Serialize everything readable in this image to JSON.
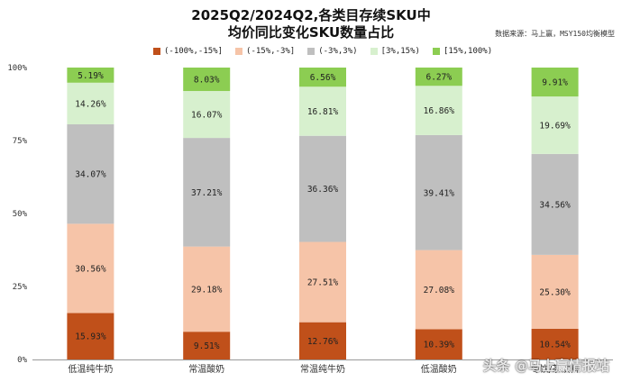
{
  "chart_data": {
    "type": "bar",
    "stacked": true,
    "title": "2025Q2/2024Q2,各类目存续SKU中",
    "subtitle": "均价同比变化SKU数量占比",
    "source": "数据来源：马上赢，MSY150均衡模型",
    "categories": [
      "低温纯牛奶",
      "常温酸奶",
      "常温纯牛奶",
      "低温酸奶",
      "冬饮/茶饮料"
    ],
    "series": [
      {
        "name": "(-100%,-15%]",
        "color": "#C0501A",
        "values": [
          15.93,
          9.51,
          12.76,
          10.39,
          10.54
        ]
      },
      {
        "name": "(-15%,-3%]",
        "color": "#F6C4A8",
        "values": [
          30.56,
          29.18,
          27.51,
          27.08,
          25.3
        ]
      },
      {
        "name": "(-3%,3%)",
        "color": "#BFBFBF",
        "values": [
          34.07,
          37.21,
          36.36,
          39.41,
          34.56
        ]
      },
      {
        "name": "[3%,15%)",
        "color": "#D7F0CE",
        "values": [
          14.26,
          16.07,
          16.81,
          16.86,
          19.69
        ]
      },
      {
        "name": "[15%,100%)",
        "color": "#8CCD52",
        "values": [
          5.19,
          8.03,
          6.56,
          6.27,
          9.91
        ]
      }
    ],
    "y_ticks": [
      "0%",
      "25%",
      "50%",
      "75%",
      "100%"
    ],
    "ylim": [
      0,
      100
    ],
    "grid": false,
    "legend_position": "top"
  },
  "watermark": "头条 @马上赢情报站"
}
